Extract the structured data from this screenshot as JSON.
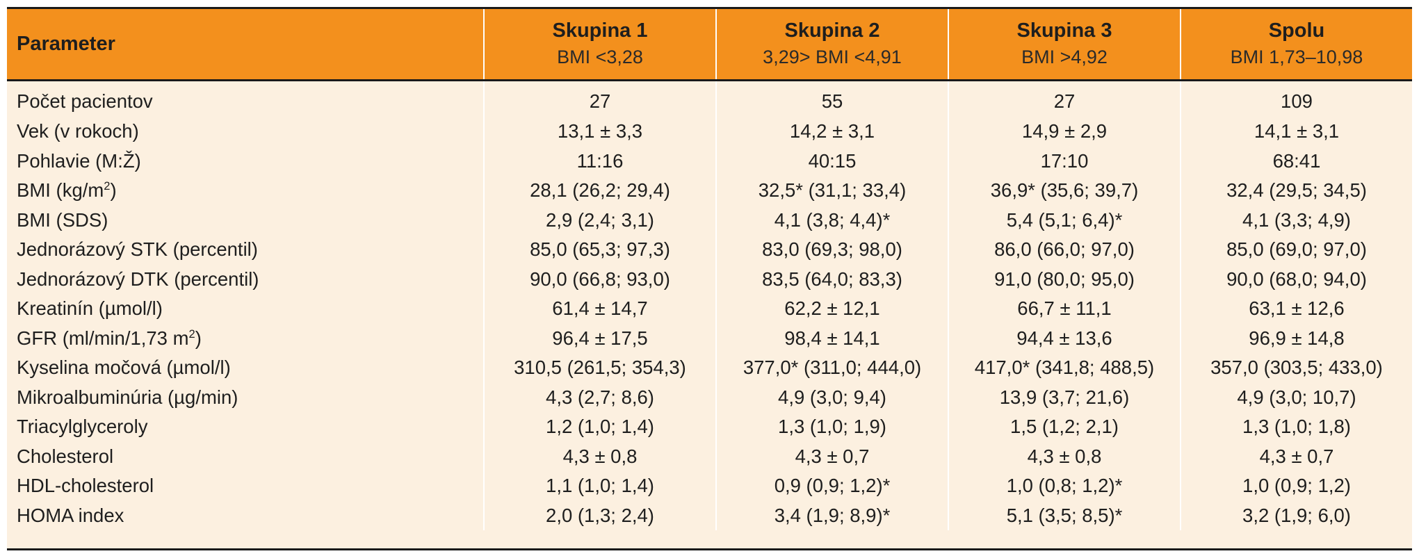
{
  "table": {
    "headers": {
      "parameter": "Parameter",
      "groups": [
        {
          "title": "Skupina 1",
          "subtitle": "BMI <3,28"
        },
        {
          "title": "Skupina 2",
          "subtitle": "3,29> BMI <4,91"
        },
        {
          "title": "Skupina 3",
          "subtitle": "BMI >4,92"
        },
        {
          "title": "Spolu",
          "subtitle": "BMI 1,73–10,98"
        }
      ]
    },
    "rows": [
      {
        "label": "Počet pacientov",
        "values": [
          "27",
          "55",
          "27",
          "109"
        ]
      },
      {
        "label": "Vek (v rokoch)",
        "values": [
          "13,1 ± 3,3",
          "14,2 ± 3,1",
          "14,9 ± 2,9",
          "14,1 ± 3,1"
        ]
      },
      {
        "label": "Pohlavie (M:Ž)",
        "values": [
          "11:16",
          "40:15",
          "17:10",
          "68:41"
        ]
      },
      {
        "label_pre": "BMI (kg/m",
        "label_sup": "2",
        "label_post": ")",
        "values": [
          "28,1 (26,2; 29,4)",
          "32,5* (31,1; 33,4)",
          "36,9* (35,6; 39,7)",
          "32,4 (29,5; 34,5)"
        ]
      },
      {
        "label": "BMI (SDS)",
        "values": [
          "2,9 (2,4; 3,1)",
          "4,1 (3,8; 4,4)*",
          "5,4 (5,1; 6,4)*",
          "4,1 (3,3; 4,9)"
        ]
      },
      {
        "label": "Jednorázový STK (percentil)",
        "values": [
          "85,0 (65,3; 97,3)",
          "83,0 (69,3; 98,0)",
          "86,0 (66,0; 97,0)",
          "85,0 (69,0; 97,0)"
        ]
      },
      {
        "label": "Jednorázový DTK (percentil)",
        "values": [
          "90,0 (66,8; 93,0)",
          "83,5 (64,0; 83,3)",
          "91,0 (80,0; 95,0)",
          "90,0 (68,0; 94,0)"
        ]
      },
      {
        "label": "Kreatinín (µmol/l)",
        "values": [
          "61,4 ± 14,7",
          "62,2 ± 12,1",
          "66,7 ± 11,1",
          "63,1 ± 12,6"
        ]
      },
      {
        "label_pre": "GFR (ml/min/1,73 m",
        "label_sup": "2",
        "label_post": ")",
        "values": [
          "96,4 ± 17,5",
          "98,4 ± 14,1",
          "94,4 ± 13,6",
          "96,9 ± 14,8"
        ]
      },
      {
        "label": "Kyselina močová (µmol/l)",
        "values": [
          "310,5 (261,5; 354,3)",
          "377,0* (311,0; 444,0)",
          "417,0* (341,8; 488,5)",
          "357,0 (303,5; 433,0)"
        ]
      },
      {
        "label": "Mikroalbuminúria (µg/min)",
        "values": [
          "4,3 (2,7; 8,6)",
          "4,9 (3,0; 9,4)",
          "13,9 (3,7; 21,6)",
          "4,9 (3,0; 10,7)"
        ]
      },
      {
        "label": "Triacylglyceroly",
        "values": [
          "1,2 (1,0; 1,4)",
          "1,3 (1,0; 1,9)",
          "1,5 (1,2; 2,1)",
          "1,3 (1,0; 1,8)"
        ]
      },
      {
        "label": "Cholesterol",
        "values": [
          "4,3 ± 0,8",
          "4,3 ± 0,7",
          "4,3 ± 0,8",
          "4,3 ± 0,7"
        ]
      },
      {
        "label": "HDL-cholesterol",
        "values": [
          "1,1 (1,0; 1,4)",
          "0,9 (0,9; 1,2)*",
          "1,0 (0,8; 1,2)*",
          "1,0 (0,9; 1,2)"
        ]
      },
      {
        "label": "HOMA index",
        "values": [
          "2,0 (1,3; 2,4)",
          "3,4 (1,9; 8,9)*",
          "5,1 (3,5; 8,5)*",
          "3,2 (1,9; 6,0)"
        ]
      }
    ]
  }
}
